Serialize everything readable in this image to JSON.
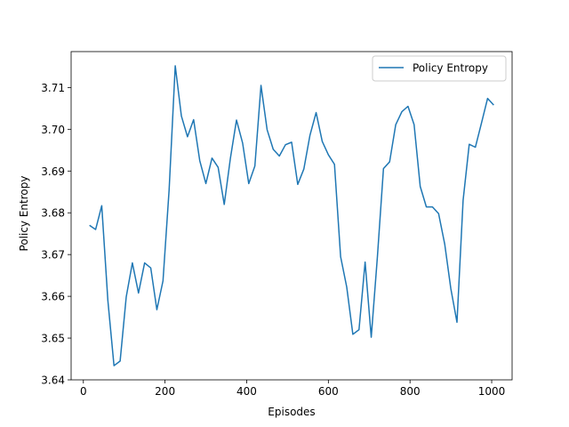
{
  "chart_data": {
    "type": "line",
    "xlabel": "Episodes",
    "ylabel": "Policy Entropy",
    "xlim": [
      -30,
      1050
    ],
    "ylim": [
      3.64,
      3.7186
    ],
    "xticks": [
      0,
      200,
      400,
      600,
      800,
      1000
    ],
    "yticks": [
      3.64,
      3.65,
      3.66,
      3.67,
      3.68,
      3.69,
      3.7,
      3.71
    ],
    "ytick_labels": [
      "3.64",
      "3.65",
      "3.66",
      "3.67",
      "3.68",
      "3.69",
      "3.70",
      "3.71"
    ],
    "xtick_labels": [
      "0",
      "200",
      "400",
      "600",
      "800",
      "1000"
    ],
    "grid": false,
    "legend_position": "top-right",
    "series": [
      {
        "name": "Policy Entropy",
        "color": "#1f77b4",
        "x": [
          15,
          30,
          45,
          60,
          75,
          90,
          105,
          120,
          135,
          150,
          165,
          180,
          195,
          210,
          225,
          240,
          255,
          270,
          285,
          300,
          315,
          330,
          345,
          360,
          375,
          390,
          405,
          420,
          435,
          450,
          465,
          480,
          495,
          510,
          525,
          540,
          555,
          570,
          585,
          600,
          615,
          630,
          645,
          660,
          675,
          690,
          705,
          720,
          735,
          750,
          765,
          780,
          795,
          810,
          825,
          840,
          855,
          870,
          885,
          900,
          915,
          930,
          945,
          960,
          975,
          990,
          1005
        ],
        "y": [
          3.677,
          3.676,
          3.6817,
          3.659,
          3.6434,
          3.6445,
          3.6599,
          3.668,
          3.6608,
          3.668,
          3.6668,
          3.6568,
          3.6637,
          3.6855,
          3.7152,
          3.7032,
          3.6982,
          3.7023,
          3.6925,
          3.687,
          3.6931,
          3.6909,
          3.682,
          3.693,
          3.7022,
          3.6967,
          3.687,
          3.6912,
          3.7105,
          3.6999,
          3.6952,
          3.6936,
          3.6963,
          3.6969,
          3.6868,
          3.6905,
          3.6986,
          3.704,
          3.6971,
          3.6939,
          3.6916,
          3.6695,
          3.6622,
          3.6509,
          3.652,
          3.6682,
          3.6502,
          3.6693,
          3.6906,
          3.6922,
          3.7011,
          3.7042,
          3.7055,
          3.7011,
          3.6863,
          3.6814,
          3.6814,
          3.6798,
          3.6725,
          3.6618,
          3.6538,
          3.683,
          3.6964,
          3.6957,
          3.7015,
          3.7074,
          3.7058
        ]
      }
    ]
  }
}
